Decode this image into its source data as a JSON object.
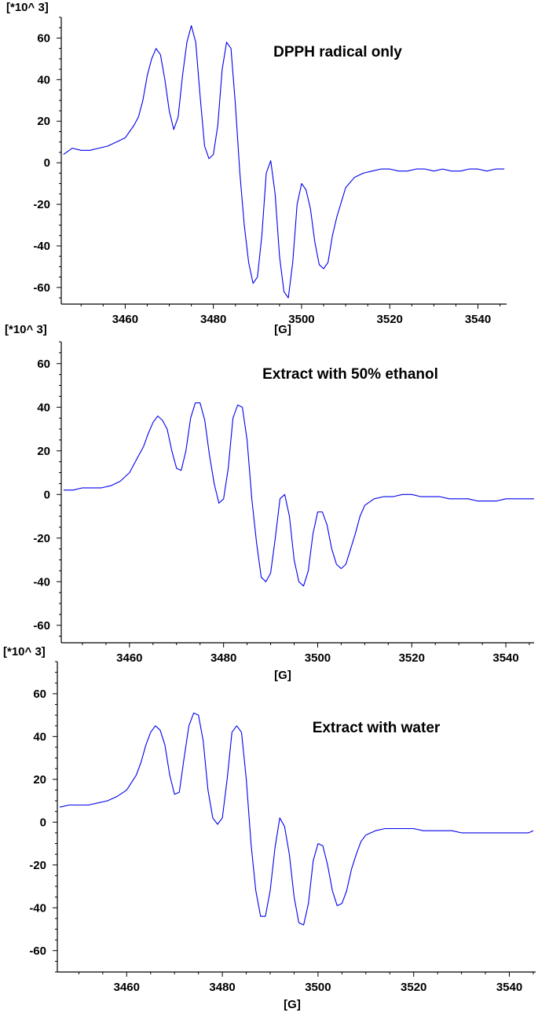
{
  "chart_data": [
    {
      "type": "line",
      "title": "DPPH radical only",
      "ylabel": "[*10^ 3]",
      "xlabel": "[G]",
      "xlim": [
        3445.5,
        3546.5
      ],
      "ylim": [
        -68,
        70
      ],
      "xticks": [
        3460,
        3480,
        3500,
        3520,
        3540
      ],
      "yticks": [
        -60,
        -40,
        -20,
        0,
        20,
        40,
        60
      ],
      "color": "#0000ee",
      "grid": false,
      "series": [
        {
          "x": [
            3446,
            3448,
            3450,
            3452,
            3454,
            3456,
            3458,
            3460,
            3462,
            3463,
            3464,
            3465,
            3466,
            3467,
            3468,
            3469,
            3470,
            3471,
            3472,
            3473,
            3474,
            3475,
            3476,
            3477,
            3478,
            3479,
            3480,
            3481,
            3482,
            3483,
            3484,
            3485,
            3486,
            3487,
            3488,
            3489,
            3490,
            3491,
            3492,
            3493,
            3494,
            3495,
            3496,
            3497,
            3498,
            3499,
            3500,
            3501,
            3502,
            3503,
            3504,
            3505,
            3506,
            3507,
            3508,
            3509,
            3510,
            3512,
            3514,
            3516,
            3518,
            3520,
            3522,
            3524,
            3526,
            3528,
            3530,
            3532,
            3534,
            3536,
            3538,
            3540,
            3542,
            3544,
            3546
          ],
          "y": [
            4,
            7,
            6,
            6,
            7,
            8,
            10,
            12,
            18,
            22,
            30,
            42,
            50,
            55,
            52,
            40,
            25,
            16,
            22,
            42,
            58,
            66,
            58,
            32,
            8,
            2,
            4,
            18,
            45,
            58,
            55,
            28,
            -5,
            -30,
            -48,
            -58,
            -55,
            -35,
            -5,
            1,
            -15,
            -45,
            -62,
            -65,
            -48,
            -20,
            -10,
            -13,
            -22,
            -38,
            -49,
            -51,
            -48,
            -35,
            -26,
            -19,
            -12,
            -7,
            -5,
            -4,
            -3,
            -3,
            -4,
            -4,
            -3,
            -3,
            -4,
            -3,
            -4,
            -4,
            -3,
            -3,
            -4,
            -3,
            -3
          ]
        }
      ]
    },
    {
      "type": "line",
      "title": "Extract with 50% ethanol",
      "ylabel": "[*10^ 3]",
      "xlabel": "[G]",
      "xlim": [
        3445.5,
        3546
      ],
      "ylim": [
        -68,
        70
      ],
      "xticks": [
        3460,
        3480,
        3500,
        3520,
        3540
      ],
      "yticks": [
        -60,
        -40,
        -20,
        0,
        20,
        40,
        60
      ],
      "color": "#0000ee",
      "grid": false,
      "series": [
        {
          "x": [
            3446,
            3448,
            3450,
            3452,
            3454,
            3456,
            3458,
            3460,
            3462,
            3463,
            3464,
            3465,
            3466,
            3467,
            3468,
            3469,
            3470,
            3471,
            3472,
            3473,
            3474,
            3475,
            3476,
            3477,
            3478,
            3479,
            3480,
            3481,
            3482,
            3483,
            3484,
            3485,
            3486,
            3487,
            3488,
            3489,
            3490,
            3491,
            3492,
            3493,
            3494,
            3495,
            3496,
            3497,
            3498,
            3499,
            3500,
            3501,
            3502,
            3503,
            3504,
            3505,
            3506,
            3507,
            3508,
            3509,
            3510,
            3512,
            3514,
            3516,
            3518,
            3520,
            3522,
            3524,
            3526,
            3528,
            3530,
            3532,
            3534,
            3536,
            3538,
            3540,
            3542,
            3544,
            3546
          ],
          "y": [
            2,
            2,
            3,
            3,
            3,
            4,
            6,
            10,
            18,
            22,
            28,
            33,
            36,
            34,
            30,
            20,
            12,
            11,
            20,
            35,
            42,
            42,
            34,
            18,
            5,
            -4,
            -2,
            12,
            35,
            41,
            40,
            25,
            -2,
            -22,
            -38,
            -40,
            -36,
            -20,
            -2,
            0,
            -10,
            -30,
            -40,
            -42,
            -35,
            -18,
            -8,
            -8,
            -14,
            -25,
            -32,
            -34,
            -32,
            -25,
            -18,
            -10,
            -5,
            -2,
            -1,
            -1,
            0,
            0,
            -1,
            -1,
            -1,
            -2,
            -2,
            -2,
            -3,
            -3,
            -3,
            -2,
            -2,
            -2,
            -2
          ]
        }
      ]
    },
    {
      "type": "line",
      "title": "Extract with water",
      "ylabel": "[*10^ 3]",
      "xlabel": "[G]",
      "xlim": [
        3445.5,
        3545.5
      ],
      "ylim": [
        -70,
        75
      ],
      "xticks": [
        3460,
        3480,
        3500,
        3520,
        3540
      ],
      "yticks": [
        -60,
        -40,
        -20,
        0,
        20,
        40,
        60
      ],
      "color": "#0000ee",
      "grid": false,
      "series": [
        {
          "x": [
            3446,
            3448,
            3450,
            3452,
            3454,
            3456,
            3458,
            3460,
            3462,
            3463,
            3464,
            3465,
            3466,
            3467,
            3468,
            3469,
            3470,
            3471,
            3472,
            3473,
            3474,
            3475,
            3476,
            3477,
            3478,
            3479,
            3480,
            3481,
            3482,
            3483,
            3484,
            3485,
            3486,
            3487,
            3488,
            3489,
            3490,
            3491,
            3492,
            3493,
            3494,
            3495,
            3496,
            3497,
            3498,
            3499,
            3500,
            3501,
            3502,
            3503,
            3504,
            3505,
            3506,
            3507,
            3508,
            3509,
            3510,
            3512,
            3514,
            3516,
            3518,
            3520,
            3522,
            3524,
            3526,
            3528,
            3530,
            3532,
            3534,
            3536,
            3538,
            3540,
            3542,
            3544,
            3545
          ],
          "y": [
            7,
            8,
            8,
            8,
            9,
            10,
            12,
            15,
            22,
            28,
            36,
            42,
            45,
            43,
            36,
            22,
            13,
            14,
            30,
            45,
            51,
            50,
            38,
            15,
            2,
            -1,
            2,
            20,
            42,
            45,
            42,
            20,
            -10,
            -32,
            -44,
            -44,
            -32,
            -12,
            2,
            -2,
            -15,
            -35,
            -47,
            -48,
            -38,
            -18,
            -10,
            -11,
            -20,
            -32,
            -39,
            -38,
            -32,
            -22,
            -15,
            -9,
            -6,
            -4,
            -3,
            -3,
            -3,
            -3,
            -4,
            -4,
            -4,
            -4,
            -5,
            -5,
            -5,
            -5,
            -5,
            -5,
            -5,
            -5,
            -4
          ]
        }
      ]
    }
  ]
}
